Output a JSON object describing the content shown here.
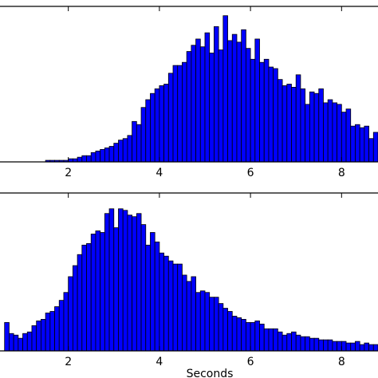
{
  "chart_data": [
    {
      "type": "bar",
      "xlim": [
        0.5,
        8.8
      ],
      "ylim": [
        0,
        100
      ],
      "xticks": [
        2,
        4,
        6,
        8
      ],
      "xtick_labels": [
        "2",
        "4",
        "6",
        "8"
      ],
      "xlabel": "",
      "bar_color": "#0000ff",
      "edge_color": "#000000",
      "bin_start": 0.5,
      "bin_width": 0.1,
      "values": [
        0,
        0,
        0,
        0,
        0,
        0,
        0,
        0,
        0,
        0,
        1,
        1,
        1,
        1,
        1,
        2,
        2,
        3,
        4,
        4,
        6,
        7,
        8,
        9,
        10,
        12,
        14,
        15,
        17,
        26,
        24,
        35,
        40,
        44,
        47,
        49,
        50,
        57,
        62,
        62,
        64,
        71,
        75,
        79,
        74,
        83,
        70,
        87,
        72,
        94,
        78,
        82,
        77,
        85,
        73,
        66,
        79,
        64,
        66,
        61,
        60,
        53,
        49,
        50,
        48,
        56,
        47,
        37,
        45,
        44,
        47,
        38,
        40,
        38,
        37,
        32,
        34,
        23,
        24,
        22,
        23,
        15,
        19,
        13,
        22,
        16,
        14,
        12,
        13,
        13,
        10,
        14,
        15,
        11,
        7,
        10,
        10,
        9,
        9,
        7,
        9,
        6,
        7,
        6,
        6,
        8,
        5,
        7,
        7,
        3,
        5,
        3,
        4,
        4,
        6,
        6,
        4,
        3,
        4,
        4,
        3,
        4
      ]
    },
    {
      "type": "bar",
      "xlim": [
        0.5,
        8.8
      ],
      "ylim": [
        0,
        100
      ],
      "xticks": [
        2,
        4,
        6,
        8
      ],
      "xtick_labels": [
        "2",
        "4",
        "6",
        "8"
      ],
      "xlabel": "Seconds",
      "bar_color": "#0000ff",
      "edge_color": "#000000",
      "bin_start": 0.5,
      "bin_width": 0.1,
      "values": [
        0,
        18,
        11,
        10,
        8,
        11,
        12,
        16,
        19,
        20,
        24,
        25,
        28,
        32,
        37,
        47,
        54,
        61,
        67,
        68,
        74,
        76,
        75,
        87,
        90,
        78,
        90,
        89,
        86,
        85,
        87,
        80,
        67,
        75,
        69,
        62,
        60,
        57,
        55,
        55,
        48,
        44,
        47,
        37,
        38,
        37,
        34,
        34,
        30,
        27,
        25,
        22,
        21,
        20,
        18,
        18,
        19,
        17,
        14,
        14,
        14,
        12,
        10,
        11,
        12,
        10,
        9,
        9,
        8,
        8,
        7,
        7,
        7,
        6,
        6,
        6,
        5,
        5,
        6,
        4,
        5,
        4,
        4,
        4,
        4,
        3,
        3,
        3,
        3,
        2,
        2,
        2,
        2,
        2,
        2,
        2,
        2,
        2,
        1,
        1,
        1,
        1,
        1,
        1,
        1,
        1,
        1,
        1,
        1,
        1,
        1,
        1,
        1,
        1,
        1,
        1,
        1,
        1,
        0,
        0,
        0,
        0,
        0,
        0,
        0
      ]
    }
  ]
}
